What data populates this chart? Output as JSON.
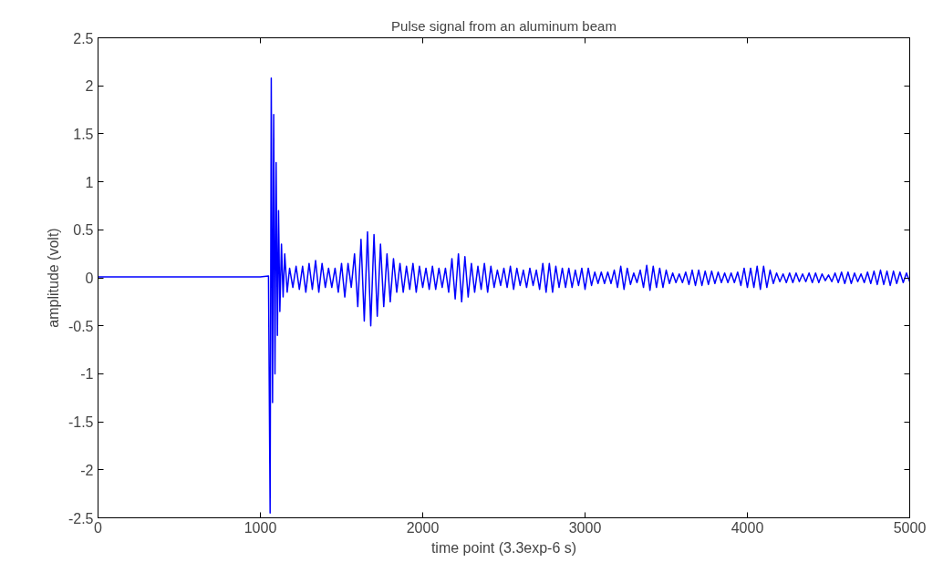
{
  "chart_data": {
    "type": "line",
    "title": "Pulse signal from an aluminum beam",
    "xlabel": "time point (3.3exp-6 s)",
    "ylabel": "amplitude (volt)",
    "xlim": [
      0,
      5000
    ],
    "ylim": [
      -2.5,
      2.5
    ],
    "xticks": [
      0,
      1000,
      2000,
      3000,
      4000,
      5000
    ],
    "yticks": [
      -2.5,
      -2,
      -1.5,
      -1,
      -0.5,
      0,
      0.5,
      1,
      1.5,
      2,
      2.5
    ],
    "grid": false,
    "marker": "none",
    "line_style": "solid",
    "series": [
      {
        "color": "#0000ff",
        "x": [
          0,
          500,
          1000,
          1050,
          1060,
          1067,
          1075,
          1082,
          1090,
          1097,
          1105,
          1112,
          1120,
          1130,
          1140,
          1150,
          1165,
          1180,
          1200,
          1220,
          1240,
          1260,
          1280,
          1300,
          1320,
          1340,
          1360,
          1380,
          1400,
          1420,
          1440,
          1460,
          1480,
          1500,
          1520,
          1540,
          1560,
          1580,
          1600,
          1620,
          1640,
          1660,
          1680,
          1700,
          1720,
          1740,
          1760,
          1780,
          1800,
          1820,
          1840,
          1860,
          1880,
          1900,
          1920,
          1940,
          1960,
          1980,
          2000,
          2020,
          2040,
          2060,
          2080,
          2100,
          2120,
          2140,
          2160,
          2180,
          2200,
          2220,
          2240,
          2260,
          2280,
          2300,
          2320,
          2340,
          2360,
          2380,
          2400,
          2420,
          2440,
          2460,
          2480,
          2500,
          2520,
          2540,
          2560,
          2580,
          2600,
          2620,
          2640,
          2660,
          2680,
          2700,
          2720,
          2740,
          2760,
          2780,
          2800,
          2820,
          2840,
          2860,
          2880,
          2900,
          2920,
          2940,
          2960,
          2980,
          3000,
          3020,
          3040,
          3060,
          3080,
          3100,
          3120,
          3140,
          3160,
          3180,
          3200,
          3220,
          3240,
          3260,
          3280,
          3300,
          3320,
          3340,
          3360,
          3380,
          3400,
          3420,
          3440,
          3460,
          3480,
          3500,
          3520,
          3540,
          3560,
          3580,
          3600,
          3620,
          3640,
          3660,
          3680,
          3700,
          3720,
          3740,
          3760,
          3780,
          3800,
          3820,
          3840,
          3860,
          3880,
          3900,
          3920,
          3940,
          3960,
          3980,
          4000,
          4020,
          4040,
          4060,
          4080,
          4100,
          4120,
          4140,
          4160,
          4180,
          4200,
          4220,
          4240,
          4260,
          4280,
          4300,
          4320,
          4340,
          4360,
          4380,
          4400,
          4420,
          4440,
          4460,
          4480,
          4500,
          4520,
          4540,
          4560,
          4580,
          4600,
          4620,
          4640,
          4660,
          4680,
          4700,
          4720,
          4740,
          4760,
          4780,
          4800,
          4820,
          4840,
          4860,
          4880,
          4900,
          4920,
          4940,
          4960,
          4980,
          5000
        ],
        "values": [
          0.01,
          0.01,
          0.01,
          0.02,
          -2.45,
          2.08,
          -1.3,
          1.7,
          -1.0,
          1.2,
          -0.6,
          0.7,
          -0.35,
          0.35,
          -0.2,
          0.25,
          -0.15,
          0.1,
          -0.1,
          0.12,
          -0.12,
          0.12,
          -0.15,
          0.15,
          -0.12,
          0.18,
          -0.15,
          0.15,
          -0.1,
          0.1,
          -0.1,
          0.1,
          -0.15,
          0.15,
          -0.2,
          0.15,
          -0.1,
          0.25,
          -0.3,
          0.4,
          -0.45,
          0.48,
          -0.5,
          0.45,
          -0.4,
          0.35,
          -0.3,
          0.25,
          -0.25,
          0.2,
          -0.15,
          0.15,
          -0.15,
          0.12,
          -0.12,
          0.15,
          -0.15,
          0.12,
          -0.1,
          0.1,
          -0.12,
          0.12,
          -0.12,
          0.1,
          -0.1,
          0.1,
          -0.15,
          0.2,
          -0.22,
          0.25,
          -0.25,
          0.22,
          -0.2,
          0.15,
          -0.15,
          0.12,
          -0.12,
          0.15,
          -0.15,
          0.12,
          -0.1,
          0.08,
          -0.08,
          0.1,
          -0.1,
          0.12,
          -0.12,
          0.1,
          -0.08,
          0.08,
          -0.1,
          0.1,
          -0.08,
          0.08,
          -0.12,
          0.15,
          -0.15,
          0.15,
          -0.15,
          0.12,
          -0.1,
          0.1,
          -0.1,
          0.1,
          -0.1,
          0.08,
          -0.08,
          0.1,
          -0.12,
          0.1,
          -0.08,
          0.06,
          -0.06,
          0.06,
          -0.06,
          0.06,
          -0.06,
          0.08,
          -0.1,
          0.12,
          -0.12,
          0.1,
          -0.07,
          0.05,
          -0.05,
          0.08,
          -0.1,
          0.13,
          -0.13,
          0.12,
          -0.1,
          0.1,
          -0.1,
          0.08,
          -0.06,
          0.05,
          -0.05,
          0.04,
          -0.05,
          0.06,
          -0.07,
          0.08,
          -0.08,
          0.08,
          -0.08,
          0.07,
          -0.07,
          0.07,
          -0.06,
          0.06,
          -0.05,
          0.05,
          -0.05,
          0.05,
          -0.05,
          0.06,
          -0.08,
          0.1,
          -0.1,
          0.1,
          -0.1,
          0.12,
          -0.12,
          0.12,
          -0.1,
          0.08,
          -0.06,
          0.05,
          -0.04,
          0.04,
          -0.05,
          0.05,
          -0.05,
          0.05,
          -0.04,
          0.04,
          -0.04,
          0.05,
          -0.05,
          0.05,
          -0.05,
          0.04,
          -0.03,
          0.03,
          -0.04,
          0.05,
          -0.05,
          0.06,
          -0.06,
          0.06,
          -0.06,
          0.05,
          -0.04,
          0.04,
          -0.05,
          0.06,
          -0.06,
          0.07,
          -0.07,
          0.08,
          -0.07,
          0.07,
          -0.08,
          0.07,
          -0.06,
          0.06,
          -0.05,
          0.05,
          -0.04
        ]
      }
    ]
  }
}
